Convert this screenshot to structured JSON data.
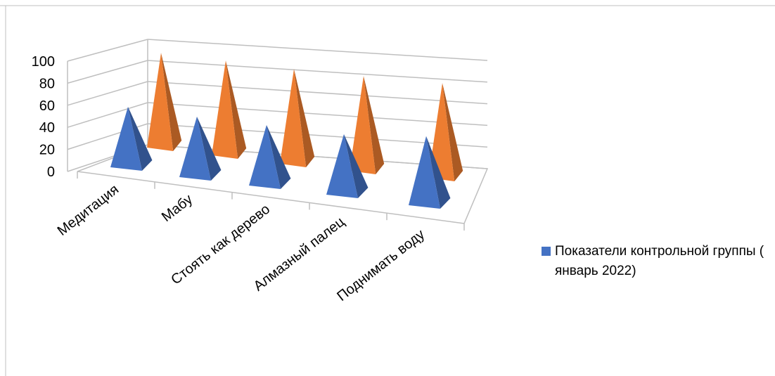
{
  "chart_data": {
    "type": "bar",
    "bar_shape": "3d-pyramid",
    "categories": [
      "Медитация",
      "Мабу",
      "Стоять как дерево",
      "Алмазный палец",
      "Поднимать воду"
    ],
    "series": [
      {
        "name": "Показатели контрольной группы ( январь 2022)",
        "color": "#4472C4",
        "values": [
          70,
          70,
          70,
          70,
          80
        ]
      },
      {
        "name": "",
        "color": "#ED7D31",
        "values": [
          95,
          95,
          95,
          95,
          95
        ]
      }
    ],
    "ylim": [
      0,
      100
    ],
    "yticks": [
      "0",
      "20",
      "40",
      "60",
      "80",
      "100"
    ],
    "grid": true,
    "legend": {
      "placement": "right",
      "entries": [
        "Показатели контрольной группы ( январь 2022)"
      ]
    },
    "xlabel": "",
    "ylabel": "",
    "title": ""
  }
}
